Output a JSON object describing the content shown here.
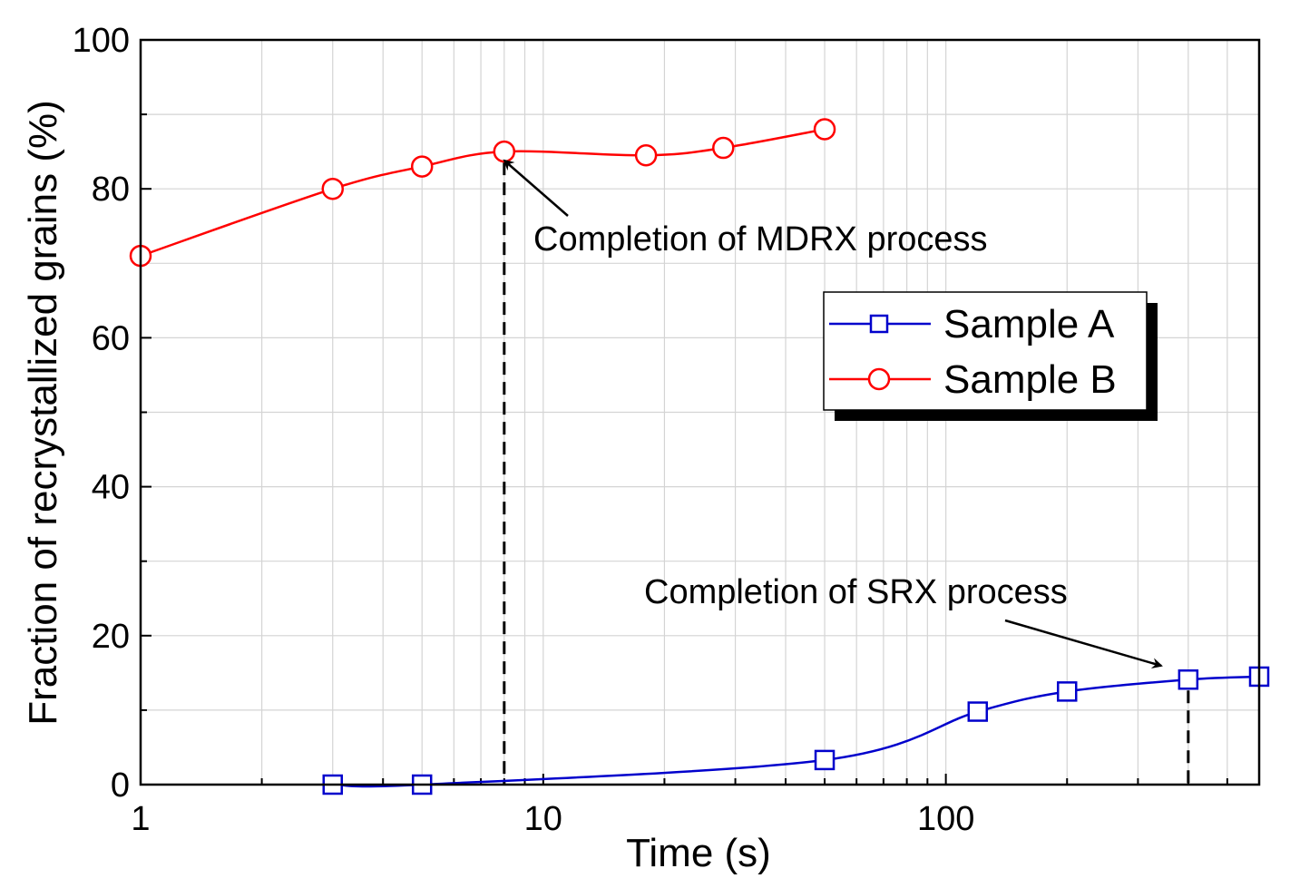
{
  "chart_data": {
    "type": "line",
    "title": "",
    "xlabel": "Time (s)",
    "ylabel": "Fraction of recrystallized grains (%)",
    "xscale": "log",
    "xlim": [
      1,
      600
    ],
    "ylim": [
      0,
      100
    ],
    "grid": true,
    "x_major_ticks": [
      {
        "value": 1,
        "label": "1"
      },
      {
        "value": 10,
        "label": "10"
      },
      {
        "value": 100,
        "label": "100"
      }
    ],
    "y_major_ticks": [
      {
        "value": 0,
        "label": "0"
      },
      {
        "value": 20,
        "label": "20"
      },
      {
        "value": 40,
        "label": "40"
      },
      {
        "value": 60,
        "label": "60"
      },
      {
        "value": 80,
        "label": "80"
      },
      {
        "value": 100,
        "label": "100"
      }
    ],
    "legend_position": "top-right",
    "series": [
      {
        "name": "Sample A",
        "color": "#0000cc",
        "marker": "square",
        "x": [
          3,
          5,
          50,
          120,
          200,
          400,
          600
        ],
        "y": [
          0,
          0,
          3.3,
          9.8,
          12.5,
          14.1,
          14.5
        ]
      },
      {
        "name": "Sample B",
        "color": "#ff0000",
        "marker": "circle",
        "x": [
          1,
          3,
          5,
          8,
          18,
          28,
          50
        ],
        "y": [
          71,
          80,
          83,
          85,
          84.5,
          85.5,
          88
        ]
      }
    ],
    "annotations": [
      {
        "text": "Completion of MDRX process",
        "target_series": "Sample B",
        "x": 8,
        "y": 85
      },
      {
        "text": "Completion of SRX process",
        "target_series": "Sample A",
        "x": 400,
        "y": 14.1
      }
    ]
  }
}
